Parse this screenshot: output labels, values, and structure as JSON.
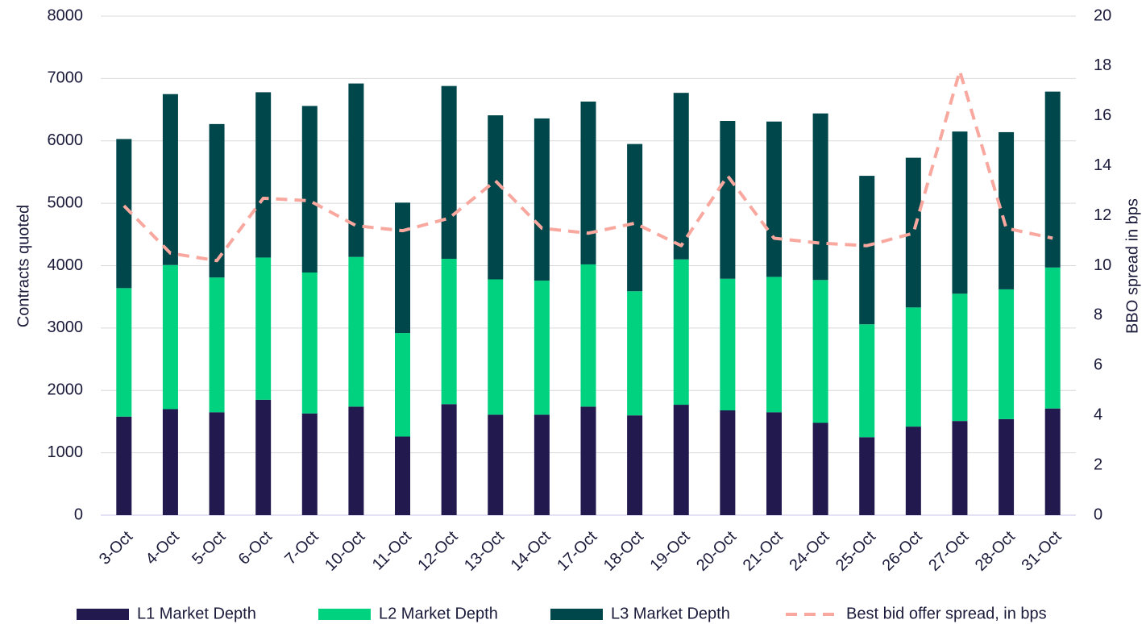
{
  "chart_data": {
    "type": "bar",
    "categories": [
      "3-Oct",
      "4-Oct",
      "5-Oct",
      "6-Oct",
      "7-Oct",
      "10-Oct",
      "11-Oct",
      "12-Oct",
      "13-Oct",
      "14-Oct",
      "17-Oct",
      "18-Oct",
      "19-Oct",
      "20-Oct",
      "21-Oct",
      "24-Oct",
      "25-Oct",
      "26-Oct",
      "27-Oct",
      "28-Oct",
      "31-Oct"
    ],
    "stacked": true,
    "series": [
      {
        "name": "L1 Market Depth",
        "color": "#221a4f",
        "values": [
          1580,
          1700,
          1650,
          1850,
          1630,
          1740,
          1260,
          1780,
          1610,
          1610,
          1740,
          1600,
          1770,
          1680,
          1650,
          1480,
          1250,
          1420,
          1510,
          1540,
          1710
        ]
      },
      {
        "name": "L2 Market Depth",
        "color": "#00d27f",
        "values": [
          2060,
          2310,
          2160,
          2280,
          2260,
          2400,
          1660,
          2330,
          2170,
          2150,
          2280,
          1990,
          2330,
          2110,
          2170,
          2290,
          1810,
          1910,
          2040,
          2080,
          2260
        ]
      },
      {
        "name": "L3 Market Depth",
        "color": "#00474c",
        "values": [
          2390,
          2740,
          2460,
          2650,
          2670,
          2780,
          2090,
          2770,
          2630,
          2600,
          2610,
          2360,
          2670,
          2530,
          2490,
          2670,
          2380,
          2400,
          2600,
          2520,
          2820
        ]
      },
      {
        "name": "Best bid offer spread, in bps",
        "color": "#f8a89e",
        "type": "line",
        "dashed": true,
        "axis": "y2",
        "values": [
          12.4,
          10.5,
          10.2,
          12.7,
          12.6,
          11.6,
          11.4,
          11.9,
          13.4,
          11.5,
          11.3,
          11.7,
          10.8,
          13.6,
          11.1,
          10.9,
          10.8,
          11.3,
          17.8,
          11.5,
          11.1
        ]
      }
    ],
    "y_label": "Contracts quoted",
    "y2_label": "BBO spread in bps",
    "ylim": [
      0,
      8000
    ],
    "yticks": [
      0,
      1000,
      2000,
      3000,
      4000,
      5000,
      6000,
      7000,
      8000
    ],
    "y2lim": [
      0,
      20
    ],
    "y2ticks": [
      0,
      2,
      4,
      6,
      8,
      10,
      12,
      14,
      16,
      18,
      20
    ],
    "grid": true,
    "legend": "bottom"
  }
}
